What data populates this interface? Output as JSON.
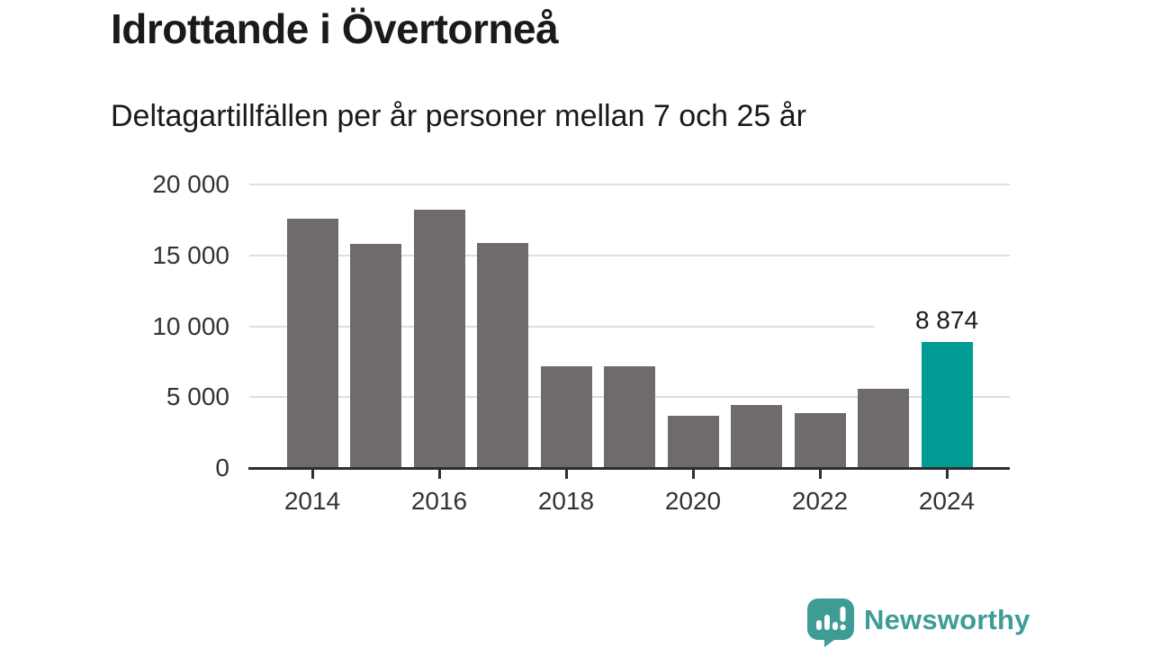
{
  "header": {
    "title": "Idrottande i Övertorneå",
    "subtitle": "Deltagartillfällen per år personer mellan 7 och 25 år"
  },
  "chart_data": {
    "type": "bar",
    "title": "Idrottande i Övertorneå",
    "subtitle": "Deltagartillfällen per år personer mellan 7 och 25 år",
    "categories": [
      2014,
      2015,
      2016,
      2017,
      2018,
      2019,
      2020,
      2021,
      2022,
      2023,
      2024
    ],
    "values": [
      17600,
      15800,
      18200,
      15900,
      7150,
      7200,
      3700,
      4450,
      3860,
      5570,
      8874
    ],
    "xlabel": "",
    "ylabel": "",
    "ylim": [
      0,
      20000
    ],
    "grid": true,
    "y_ticks": [
      {
        "value": 0,
        "label": "0"
      },
      {
        "value": 5000,
        "label": "5 000"
      },
      {
        "value": 10000,
        "label": "10 000"
      },
      {
        "value": 15000,
        "label": "15 000"
      },
      {
        "value": 20000,
        "label": "20 000"
      }
    ],
    "x_tick_labels": [
      "2014",
      "2016",
      "2018",
      "2020",
      "2022",
      "2024"
    ],
    "highlight_category": 2024,
    "value_label": {
      "category": 2024,
      "text": "8 874"
    },
    "bar_color": "#6e6a6e",
    "highlight_color": "#009b94",
    "gridline_color": "#dedede",
    "axis_color": "#2f2f2f",
    "legend": null
  },
  "branding": {
    "logo_text": "Newsworthy",
    "logo_color": "#3d9d96",
    "logo_icon": "bar-chart-speech-bubble-icon"
  }
}
